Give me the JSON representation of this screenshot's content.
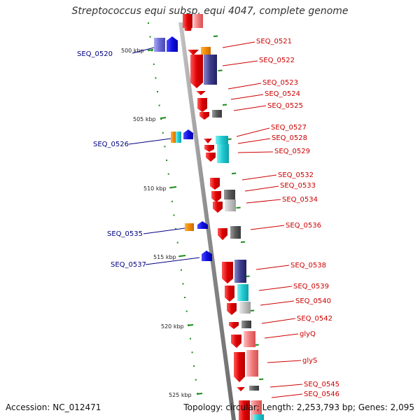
{
  "title": "Streptococcus equi subsp. equi 4047, complete genome",
  "footer": {
    "accession": "Accession: NC_012471",
    "summary": "Topology: circular; Length: 2,253,793 bp; Genes: 2,095"
  },
  "colors": {
    "forward_gene": "#e00000",
    "reverse_gene": "#1010e0",
    "backbone": "#8c8c8c",
    "tick": "#1a8a1a",
    "left_label": "#000080",
    "right_label": "#cc0000"
  },
  "kbp_ticks": [
    "500 kbp",
    "505 kbp",
    "510 kbp",
    "515 kbp",
    "520 kbp",
    "525 kbp"
  ],
  "left_genes": [
    "SEQ_0520",
    "SEQ_0526",
    "SEQ_0535",
    "SEQ_0537"
  ],
  "right_genes": [
    "SEQ_0521",
    "SEQ_0522",
    "SEQ_0523",
    "SEQ_0524",
    "SEQ_0525",
    "SEQ_0527",
    "SEQ_0528",
    "SEQ_0529",
    "SEQ_0532",
    "SEQ_0533",
    "SEQ_0534",
    "SEQ_0536",
    "SEQ_0538",
    "SEQ_0539",
    "SEQ_0540",
    "SEQ_0542",
    "glyQ",
    "glyS",
    "SEQ_0545",
    "SEQ_0546"
  ]
}
